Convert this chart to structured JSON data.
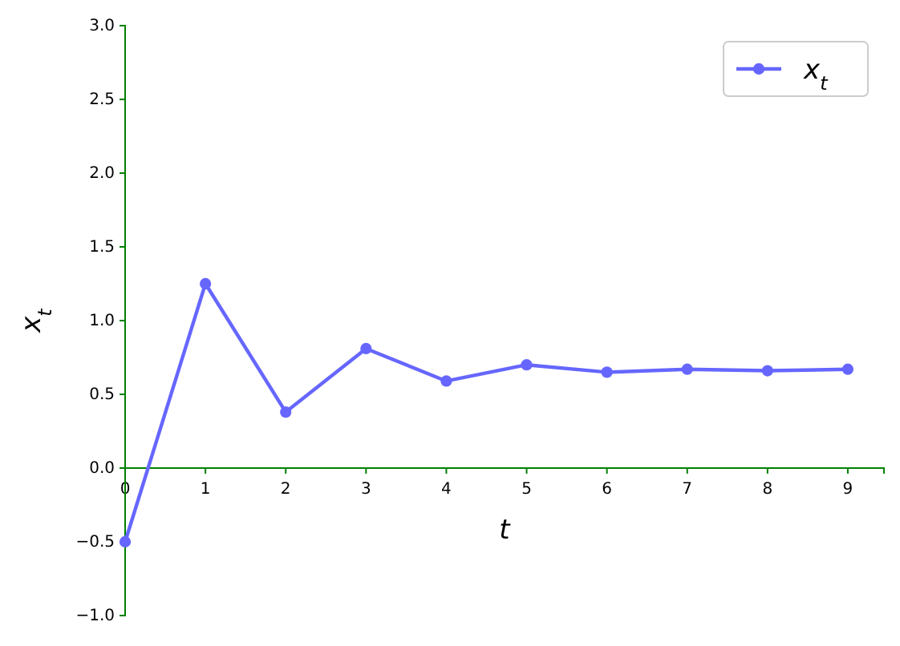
{
  "chart_data": {
    "type": "line",
    "xlabel": "t",
    "ylabel": "x$_{t}$",
    "x": [
      0,
      1,
      2,
      3,
      4,
      5,
      6,
      7,
      8,
      9
    ],
    "series": [
      {
        "name": "x$_{t}$",
        "color": "#6666ff",
        "values": [
          -0.5,
          1.25,
          0.38,
          0.81,
          0.59,
          0.7,
          0.65,
          0.67,
          0.66,
          0.67
        ]
      }
    ],
    "xlim": [
      0,
      9.45
    ],
    "ylim": [
      -1,
      3
    ],
    "xticks": [
      0,
      1,
      2,
      3,
      4,
      5,
      6,
      7,
      8,
      9
    ],
    "yticks": [
      {
        "value": -1,
        "label": "−1.0"
      },
      {
        "value": -0.5,
        "label": "−0.5"
      },
      {
        "value": 0,
        "label": "0.0"
      },
      {
        "value": 0.5,
        "label": "0.5"
      },
      {
        "value": 1,
        "label": "1.0"
      },
      {
        "value": 1.5,
        "label": "1.5"
      },
      {
        "value": 2,
        "label": "2.0"
      },
      {
        "value": 2.5,
        "label": "2.5"
      },
      {
        "value": 3,
        "label": "3.0"
      }
    ],
    "legend": "top right",
    "marker": "circle",
    "line_style": "solid",
    "grid": false
  }
}
